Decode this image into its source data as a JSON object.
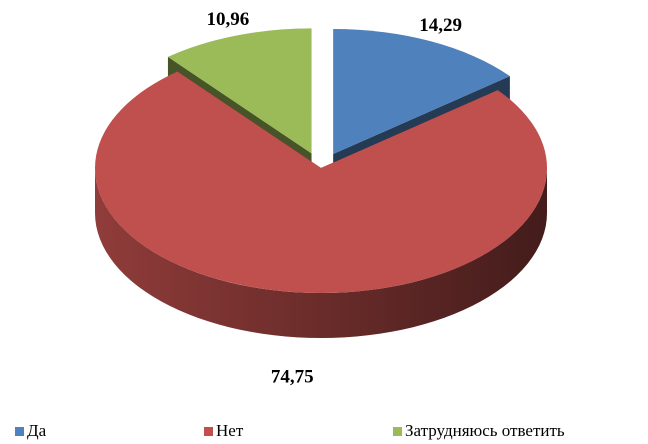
{
  "chart_data": {
    "type": "pie",
    "categories": [
      "Да",
      "Нет",
      "Затрудняюсь ответить"
    ],
    "values": [
      14.29,
      74.75,
      10.96
    ],
    "value_labels": [
      "14,29",
      "74,75",
      "10,96"
    ],
    "colors": [
      "#4f81bd",
      "#c0504d",
      "#9bbb59"
    ],
    "legend": "bottom"
  }
}
